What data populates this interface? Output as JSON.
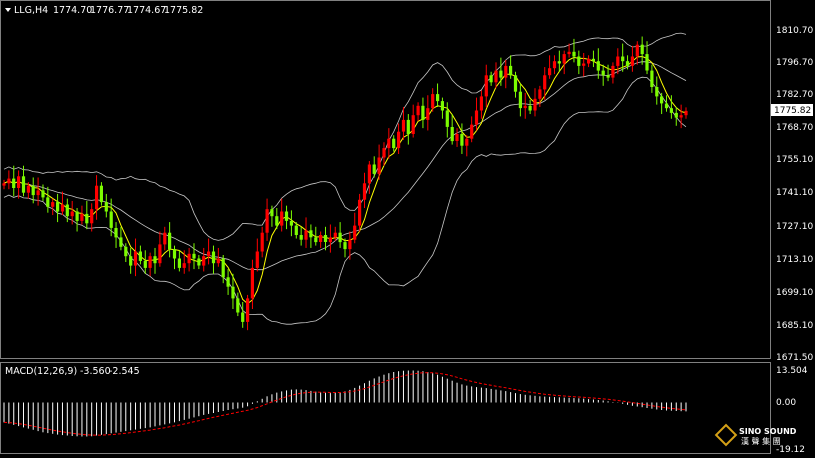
{
  "header": {
    "symbol": "LLG,H4",
    "open": "1774.70",
    "high": "1776.77",
    "low": "1774.67",
    "close": "1775.82"
  },
  "price_axis": {
    "ticks": [
      "1810.70",
      "1796.70",
      "1782.70",
      "1768.70",
      "1755.10",
      "1741.10",
      "1727.10",
      "1713.10",
      "1699.10",
      "1685.10",
      "1671.50"
    ],
    "current_price": "1775.82"
  },
  "macd": {
    "label": "MACD(12,26,9)",
    "main": "-3.560",
    "signal": "-2.545",
    "ticks": [
      "13.504",
      "0.00",
      "-19.12"
    ]
  },
  "logo": {
    "line1": "SINO SOUND",
    "line2": "漢 聲 集 團"
  },
  "colors": {
    "background": "#000000",
    "bull_candle": "#ff0000",
    "bear_candle": "#7cfc00",
    "bollinger": "#c8c8c8",
    "ma": "#ffff00",
    "macd_hist": "#ffffff",
    "macd_signal": "#ff0000",
    "current_price_box": "#ffffff"
  },
  "chart_data": {
    "type": "candlestick",
    "timeframe": "H4",
    "series": [
      {
        "name": "price",
        "values": [
          1745,
          1747,
          1743,
          1748,
          1741,
          1744,
          1740,
          1742,
          1739,
          1735,
          1737,
          1733,
          1736,
          1731,
          1733,
          1729,
          1732,
          1728,
          1734,
          1744,
          1737,
          1733,
          1726,
          1722,
          1718,
          1714,
          1710,
          1716,
          1712,
          1709,
          1714,
          1711,
          1719,
          1724,
          1717,
          1713,
          1709,
          1711,
          1715,
          1713,
          1710,
          1714,
          1716,
          1711,
          1713,
          1705,
          1701,
          1696,
          1690,
          1686,
          1696,
          1709,
          1716,
          1724,
          1734,
          1731,
          1727,
          1733,
          1729,
          1727,
          1723,
          1721,
          1725,
          1722,
          1720,
          1723,
          1720,
          1722,
          1724,
          1720,
          1717,
          1721,
          1727,
          1738,
          1745,
          1753,
          1749,
          1756,
          1760,
          1764,
          1760,
          1767,
          1772,
          1766,
          1774,
          1778,
          1772,
          1777,
          1783,
          1780,
          1776,
          1769,
          1763,
          1766,
          1761,
          1764,
          1770,
          1776,
          1782,
          1791,
          1788,
          1793,
          1790,
          1795,
          1791,
          1784,
          1777,
          1778,
          1776,
          1781,
          1785,
          1791,
          1794,
          1797,
          1796,
          1800,
          1801,
          1799,
          1795,
          1796,
          1798,
          1797,
          1793,
          1791,
          1790,
          1795,
          1799,
          1797,
          1795,
          1799,
          1804,
          1800,
          1793,
          1786,
          1782,
          1779,
          1777,
          1775,
          1773,
          1774,
          1775.82
        ]
      },
      {
        "name": "macd",
        "values": [
          -8,
          -8.5,
          -9,
          -9.5,
          -10,
          -10.5,
          -11,
          -11.5,
          -12,
          -12.3,
          -12.6,
          -12.9,
          -13.1,
          -13.3,
          -13.5,
          -13.6,
          -13.7,
          -13.7,
          -13.6,
          -13.3,
          -13,
          -12.7,
          -12.4,
          -12.1,
          -11.8,
          -11.5,
          -11.2,
          -10.9,
          -10.6,
          -10.3,
          -10,
          -9.6,
          -9.2,
          -8.8,
          -8.4,
          -8,
          -7.5,
          -7,
          -6.5,
          -6,
          -5.5,
          -5,
          -4.6,
          -4.2,
          -3.8,
          -3.4,
          -3,
          -2.7,
          -2.4,
          -2.1,
          -1.5,
          -0.5,
          0.5,
          1.5,
          2.5,
          3.3,
          4,
          4.5,
          4.9,
          5.2,
          5.3,
          5.2,
          5,
          4.7,
          4.4,
          4.1,
          3.9,
          3.8,
          3.9,
          4.1,
          4.5,
          5.1,
          5.9,
          6.8,
          7.8,
          8.8,
          9.7,
          10.5,
          11.2,
          11.8,
          12.3,
          12.6,
          12.8,
          12.9,
          12.9,
          12.8,
          12.6,
          12.3,
          11.8,
          11.2,
          10.4,
          9.6,
          8.8,
          8,
          7.3,
          6.8,
          6.5,
          6.2,
          6,
          5.8,
          5.5,
          5.2,
          4.9,
          4.6,
          4.2,
          3.8,
          3.4,
          3.1,
          2.9,
          2.7,
          2.5,
          2.4,
          2.3,
          2.2,
          2.1,
          2,
          1.9,
          1.8,
          1.7,
          1.6,
          1.4,
          1.2,
          1,
          0.8,
          0.5,
          0.2,
          -0.1,
          -0.5,
          -0.9,
          -1.3,
          -1.6,
          -1.9,
          -2.2,
          -2.5,
          -2.8,
          -3,
          -3.2,
          -3.3,
          -3.4,
          -3.5,
          -3.56
        ]
      }
    ],
    "ylim": [
      1671.5,
      1810.7
    ],
    "macd_ylim": [
      -19.12,
      13.504
    ]
  }
}
